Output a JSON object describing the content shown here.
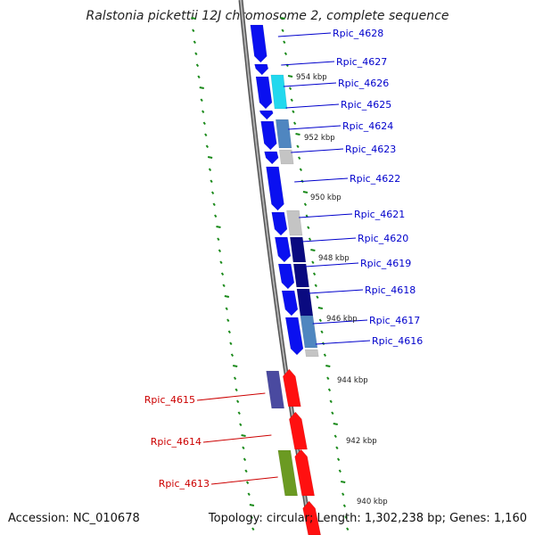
{
  "title": "Ralstonia pickettii 12J chromosome 2, complete sequence",
  "footer": {
    "accession": "Accession: NC_010678",
    "summary": "Topology: circular; Length: 1,302,238 bp; Genes: 1,160"
  },
  "colors": {
    "backbone": "#8a8a8a",
    "ruler_ticks": "#1a8a1a",
    "forward_label": "#0000cc",
    "reverse_label": "#cc0000",
    "blue": "#0a10f0",
    "cyan": "#22d8ee",
    "steel": "#4f86c0",
    "gray": "#c4c4c4",
    "navy": "#0a0a80",
    "slate": "#4a4aa0",
    "red": "#ff1010",
    "olive": "#6b9a22"
  },
  "scale_labels": [
    "954 kbp",
    "952 kbp",
    "950 kbp",
    "948 kbp",
    "946 kbp",
    "944 kbp",
    "942 kbp",
    "940 kbp"
  ],
  "forward_genes": [
    "Rpic_4628",
    "Rpic_4627",
    "Rpic_4626",
    "Rpic_4625",
    "Rpic_4624",
    "Rpic_4623",
    "Rpic_4622",
    "Rpic_4621",
    "Rpic_4620",
    "Rpic_4619",
    "Rpic_4618",
    "Rpic_4617",
    "Rpic_4616"
  ],
  "reverse_genes": [
    "Rpic_4615",
    "Rpic_4614",
    "Rpic_4613"
  ]
}
